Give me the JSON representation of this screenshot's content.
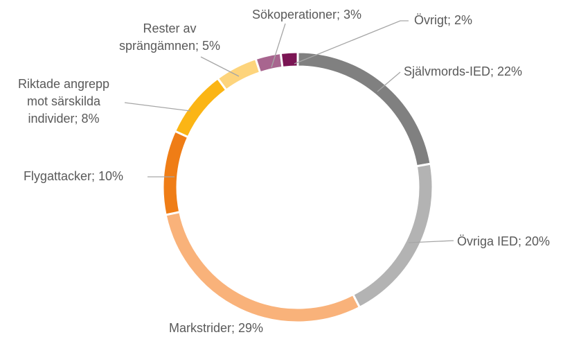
{
  "chart_data": {
    "type": "donut",
    "values": [
      22,
      20,
      29,
      10,
      8,
      5,
      3,
      2
    ],
    "value_labels": [
      "Självmords-IED; 22%",
      "Övriga IED; 20%",
      "Markstrider; 29%",
      "Flygattacker; 10%",
      "Riktade angrepp\nmot särskilda\nindivider; 8%",
      "Rester av\nsprängämnen; 5%",
      "Sökoperationer; 3%",
      "Övrigt; 2%"
    ],
    "colors": [
      "#808080",
      "#b3b3b3",
      "#f9b27a",
      "#ef7d16",
      "#fbb515",
      "#fdd47c",
      "#a8658f",
      "#7b1554"
    ]
  }
}
